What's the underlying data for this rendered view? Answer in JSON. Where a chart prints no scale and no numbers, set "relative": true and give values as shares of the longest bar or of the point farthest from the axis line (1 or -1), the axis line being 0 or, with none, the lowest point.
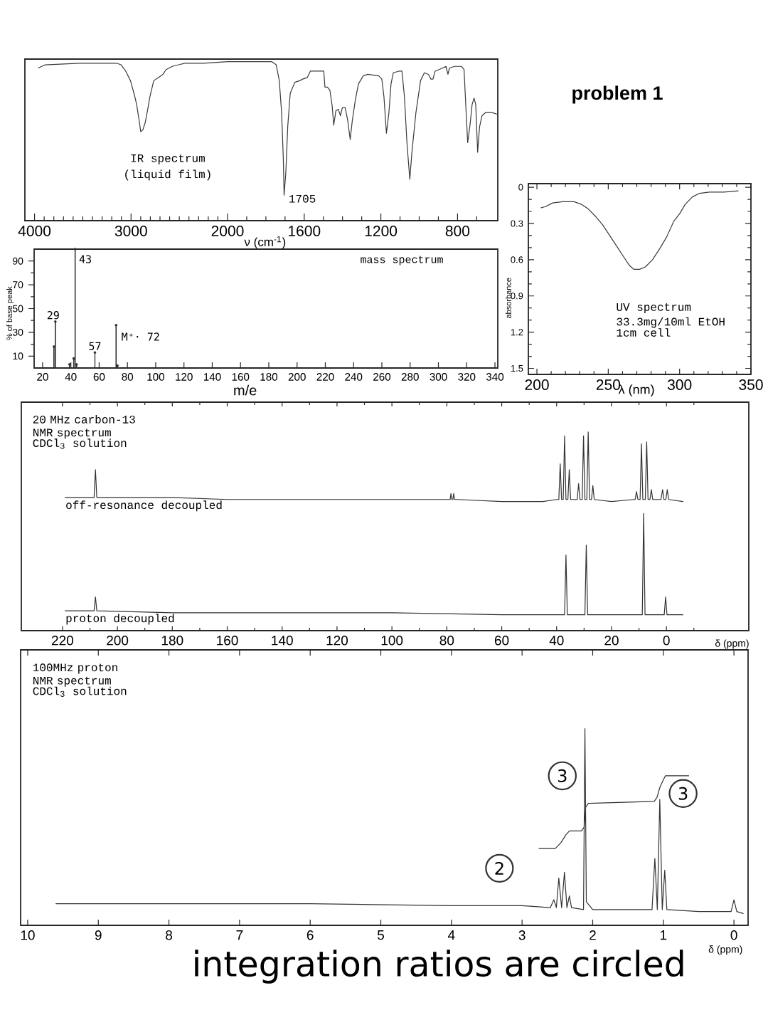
{
  "chart_data": [
    {
      "type": "line",
      "title": "IR spectrum",
      "subtitle": "(liquid film)",
      "relative": true,
      "color": "#3a3a3a",
      "xlim": [
        4100,
        2000
      ],
      "xticks": [
        4000,
        {
          "value": 3900,
          "label": null
        },
        {
          "value": 3800,
          "label": null
        },
        {
          "value": 3700,
          "label": null
        },
        {
          "value": 3600,
          "label": null
        },
        {
          "value": 3500,
          "label": null
        },
        {
          "value": 3400,
          "label": null
        },
        {
          "value": 3300,
          "label": null
        },
        {
          "value": 3200,
          "label": null
        },
        {
          "value": 3100,
          "label": null
        },
        3000,
        {
          "value": 2900,
          "label": null
        },
        {
          "value": 2800,
          "label": null
        },
        {
          "value": 2700,
          "label": null
        },
        {
          "value": 2600,
          "label": null
        },
        {
          "value": 2500,
          "label": null
        },
        {
          "value": 2400,
          "label": null
        },
        {
          "value": 2300,
          "label": null
        },
        {
          "value": 2200,
          "label": null
        },
        {
          "value": 2100,
          "label": null
        },
        2000
      ],
      "x": [
        3960,
        3891,
        3537,
        3151,
        3103,
        3055,
        3006,
        2965,
        2942,
        2916,
        2900,
        2878,
        2852,
        2830,
        2804,
        2765,
        2717,
        2669,
        2637,
        2572,
        2444,
        2251,
        2000
      ],
      "values": [
        0.96,
        0.98,
        0.99,
        0.99,
        0.98,
        0.94,
        0.88,
        0.79,
        0.73,
        0.63,
        0.56,
        0.57,
        0.62,
        0.69,
        0.78,
        0.88,
        0.9,
        0.92,
        0.95,
        0.97,
        0.99,
        0.99,
        1.0
      ]
    },
    {
      "type": "line",
      "xlabel": "ν (cm$^{-1}$)",
      "relative": true,
      "color": "#3a3a3a",
      "xlim": [
        2000,
        590
      ],
      "xticks": [
        {
          "value": 1900,
          "label": null
        },
        {
          "value": 1800,
          "label": null
        },
        {
          "value": 1700,
          "label": null
        },
        1600,
        {
          "value": 1500,
          "label": null
        },
        {
          "value": 1400,
          "label": null
        },
        {
          "value": 1300,
          "label": null
        },
        1200,
        {
          "value": 1100,
          "label": null
        },
        {
          "value": 1000,
          "label": null
        },
        {
          "value": 900,
          "label": null
        },
        800,
        {
          "value": 700,
          "label": null
        }
      ],
      "x": [
        2000,
        1964,
        1770,
        1746,
        1730,
        1718,
        1709,
        1705,
        1696,
        1686,
        1673,
        1649,
        1624,
        1608,
        1584,
        1568,
        1543,
        1498,
        1492,
        1479,
        1466,
        1454,
        1446,
        1435,
        1422,
        1411,
        1401,
        1386,
        1373,
        1360,
        1349,
        1333,
        1317,
        1292,
        1268,
        1211,
        1195,
        1184,
        1171,
        1158,
        1147,
        1135,
        1106,
        1090,
        1077,
        1064,
        1049,
        1038,
        1017,
        993,
        973,
        952,
        939,
        928,
        917,
        896,
        860,
        850,
        842,
        815,
        779,
        766,
        755,
        747,
        734,
        724,
        714,
        705,
        695,
        685,
        672,
        653,
        620,
        596
      ],
      "values": [
        1.0,
        1.0,
        1.0,
        0.98,
        0.88,
        0.68,
        0.39,
        0.16,
        0.3,
        0.59,
        0.8,
        0.87,
        0.88,
        0.89,
        0.9,
        0.94,
        0.94,
        0.94,
        0.84,
        0.84,
        0.82,
        0.72,
        0.6,
        0.69,
        0.7,
        0.66,
        0.71,
        0.71,
        0.63,
        0.51,
        0.63,
        0.76,
        0.86,
        0.91,
        0.92,
        0.91,
        0.89,
        0.78,
        0.55,
        0.68,
        0.86,
        0.93,
        0.94,
        0.94,
        0.78,
        0.49,
        0.26,
        0.43,
        0.68,
        0.88,
        0.93,
        0.92,
        0.89,
        0.89,
        0.94,
        0.95,
        0.97,
        0.92,
        0.96,
        0.97,
        0.97,
        0.95,
        0.68,
        0.49,
        0.61,
        0.73,
        0.77,
        0.73,
        0.43,
        0.59,
        0.66,
        0.68,
        0.68,
        0.67
      ],
      "annotations": [
        {
          "text": "1705",
          "x": 1705,
          "y": 0.16
        }
      ]
    },
    {
      "type": "other",
      "title": "problem 1"
    },
    {
      "type": "lollipop",
      "marker": "circle",
      "title": "mass spectrum",
      "xlabel": "m/e",
      "ylabel": "% of base peak",
      "color": "#2e2e2e",
      "xlim": [
        14,
        342
      ],
      "ylim": [
        0,
        100
      ],
      "xticks": [
        20,
        40,
        60,
        80,
        100,
        120,
        140,
        160,
        180,
        200,
        220,
        240,
        260,
        280,
        300,
        320,
        340
      ],
      "yticks": [
        10,
        {
          "value": 20,
          "label": null
        },
        30,
        {
          "value": 40,
          "label": null
        },
        50,
        {
          "value": 60,
          "label": null
        },
        70,
        {
          "value": 80,
          "label": null
        },
        90
      ],
      "x": [
        28,
        29,
        39,
        42,
        43,
        44,
        57,
        72,
        73
      ],
      "values": [
        18,
        39,
        3,
        8,
        100,
        3,
        13,
        36,
        2
      ],
      "annotations": [
        {
          "text": "29",
          "x": 29,
          "y": 39
        },
        {
          "text": "43",
          "x": 43,
          "y": 100
        },
        {
          "text": "57",
          "x": 57,
          "y": 13
        },
        {
          "text": "M⁺· 72",
          "x": 72,
          "y": 36
        }
      ]
    },
    {
      "type": "line",
      "title": "UV spectrum",
      "subtitle": "33.3mg/10ml EtOH",
      "xlabel": "λ (nm)",
      "ylabel": "absorbance",
      "color": "#3a3a3a",
      "xlim": [
        194,
        350
      ],
      "ylim": [
        1.55,
        -0.03
      ],
      "xticks": [
        200,
        {
          "value": 210,
          "label": null
        },
        {
          "value": 220,
          "label": null
        },
        {
          "value": 230,
          "label": null
        },
        {
          "value": 240,
          "label": null
        },
        250,
        {
          "value": 260,
          "label": null
        },
        {
          "value": 270,
          "label": null
        },
        {
          "value": 280,
          "label": null
        },
        {
          "value": 290,
          "label": null
        },
        300,
        {
          "value": 310,
          "label": null
        },
        {
          "value": 320,
          "label": null
        },
        {
          "value": 330,
          "label": null
        },
        {
          "value": 340,
          "label": null
        },
        350
      ],
      "yticks": [
        0,
        {
          "value": 0.1,
          "label": null
        },
        {
          "value": 0.2,
          "label": null
        },
        0.3,
        {
          "value": 0.4,
          "label": null
        },
        {
          "value": 0.5,
          "label": null
        },
        0.6,
        {
          "value": 0.7,
          "label": null
        },
        {
          "value": 0.8,
          "label": null
        },
        0.9,
        {
          "value": 1.0,
          "label": null
        },
        {
          "value": 1.1,
          "label": null
        },
        1.2,
        {
          "value": 1.3,
          "label": null
        },
        {
          "value": 1.4,
          "label": null
        },
        1.5
      ],
      "x": [
        203,
        206,
        211,
        218,
        226,
        231,
        236,
        241,
        246,
        251,
        256,
        261,
        265,
        268,
        272,
        276,
        281,
        286,
        291,
        296,
        300,
        304,
        309,
        314,
        321,
        331,
        341
      ],
      "values": [
        0.17,
        0.16,
        0.13,
        0.12,
        0.12,
        0.14,
        0.18,
        0.24,
        0.31,
        0.4,
        0.49,
        0.58,
        0.65,
        0.68,
        0.68,
        0.66,
        0.6,
        0.51,
        0.41,
        0.28,
        0.22,
        0.14,
        0.08,
        0.05,
        0.04,
        0.04,
        0.03
      ],
      "annotations": [
        "1cm cell"
      ]
    },
    {
      "type": "line",
      "title": "20 MHz carbon-13 NMR spectrum",
      "subtitle": "CDCl$_{3}$ solution",
      "xlabel": "δ (ppm)",
      "relative": true,
      "xlim": [
        235,
        -30
      ],
      "xticks": [
        220,
        {
          "value": 210,
          "label": null
        },
        200,
        {
          "value": 190,
          "label": null
        },
        180,
        {
          "value": 170,
          "label": null
        },
        160,
        {
          "value": 150,
          "label": null
        },
        140,
        {
          "value": 130,
          "label": null
        },
        120,
        {
          "value": 110,
          "label": null
        },
        100,
        {
          "value": 90,
          "label": null
        },
        80,
        {
          "value": 70,
          "label": null
        },
        60,
        {
          "value": 50,
          "label": null
        },
        40,
        {
          "value": 30,
          "label": null
        },
        20,
        {
          "value": 10,
          "label": null
        },
        0,
        {
          "value": -10,
          "label": null
        }
      ],
      "series": [
        {
          "name": "off-resonance decoupled",
          "color": "#333333",
          "x": [
            219,
            212,
            208.5,
            208,
            207.5,
            200,
            180,
            160,
            140,
            120,
            100,
            80,
            78.8,
            78.5,
            78.2,
            77.8,
            77.5,
            77.2,
            76,
            60,
            45,
            40,
            39.2,
            38.7,
            38.2,
            37.6,
            37.1,
            36.6,
            35.9,
            35.4,
            34.9,
            32.5,
            32,
            31.5,
            30.7,
            30.2,
            29.7,
            29,
            28.5,
            28,
            27.3,
            26.8,
            26.3,
            20,
            12,
            11.4,
            10.9,
            10.4,
            9.6,
            9.1,
            8.6,
            7.7,
            7.2,
            6.7,
            6,
            5.5,
            5,
            2,
            1.4,
            0.9,
            0.2,
            -0.3,
            -0.8,
            -6
          ],
          "values": [
            0.67,
            0.67,
            0.67,
            0.81,
            0.67,
            0.67,
            0.67,
            0.66,
            0.66,
            0.66,
            0.66,
            0.66,
            0.66,
            0.69,
            0.66,
            0.66,
            0.69,
            0.66,
            0.66,
            0.65,
            0.65,
            0.66,
            0.66,
            0.84,
            0.66,
            0.66,
            0.98,
            0.66,
            0.66,
            0.81,
            0.66,
            0.66,
            0.74,
            0.66,
            0.66,
            0.98,
            0.66,
            0.66,
            1.0,
            0.66,
            0.66,
            0.73,
            0.66,
            0.65,
            0.66,
            0.66,
            0.7,
            0.66,
            0.66,
            0.94,
            0.66,
            0.66,
            0.95,
            0.66,
            0.66,
            0.71,
            0.66,
            0.66,
            0.71,
            0.66,
            0.66,
            0.71,
            0.66,
            0.65
          ]
        },
        {
          "name": "proton decoupled",
          "color": "#333333",
          "x": [
            219,
            208.5,
            208,
            207.5,
            180,
            140,
            100,
            60,
            37.1,
            36.6,
            36.1,
            29.7,
            29.2,
            28.7,
            8.8,
            8.3,
            7.8,
            0.8,
            0.3,
            -0.2,
            -6
          ],
          "values": [
            0.1,
            0.1,
            0.17,
            0.1,
            0.09,
            0.09,
            0.09,
            0.08,
            0.08,
            0.38,
            0.08,
            0.08,
            0.43,
            0.08,
            0.08,
            0.59,
            0.08,
            0.08,
            0.17,
            0.08,
            0.08
          ]
        }
      ]
    },
    {
      "type": "line",
      "title": "100MHz proton NMR spectrum",
      "subtitle": "CDCl$_{3}$ solution",
      "xlabel": "δ (ppm)",
      "relative": true,
      "xlim": [
        10.1,
        -0.2
      ],
      "xticks": [
        10,
        9,
        8,
        7,
        6,
        5,
        4,
        3,
        2,
        1,
        0
      ],
      "series": [
        {
          "color": "#333333",
          "x": [
            9.6,
            8,
            6,
            4,
            3,
            2.6,
            2.55,
            2.515,
            2.48,
            2.44,
            2.4,
            2.365,
            2.33,
            2.3,
            2.13,
            2.11,
            2.09,
            2,
            1.5,
            1.16,
            1.12,
            1.085,
            1.05,
            1.015,
            0.98,
            0.95,
            0.5,
            0.04,
            0,
            -0.04,
            -0.13
          ],
          "values": [
            0.11,
            0.11,
            0.11,
            0.1,
            0.1,
            0.09,
            0.13,
            0.09,
            0.24,
            0.09,
            0.27,
            0.09,
            0.15,
            0.09,
            0.08,
            1.0,
            0.12,
            0.08,
            0.08,
            0.08,
            0.34,
            0.08,
            0.64,
            0.08,
            0.28,
            0.08,
            0.07,
            0.07,
            0.13,
            0.07,
            0.06
          ]
        },
        {
          "color": "#333333",
          "x": [
            2.76,
            2.53,
            2.45,
            2.38,
            2.33,
            2.16,
            2.12,
            2.1,
            2.06,
            1.13,
            1.09,
            1.05,
            1,
            0.97,
            0.64
          ],
          "values": [
            0.39,
            0.39,
            0.42,
            0.46,
            0.48,
            0.48,
            0.5,
            0.6,
            0.62,
            0.63,
            0.65,
            0.7,
            0.74,
            0.76,
            0.76
          ]
        }
      ],
      "annotations": [
        {
          "text": "3",
          "x": 2.43,
          "y": 0.76
        },
        {
          "text": "3",
          "x": 0.72,
          "y": 0.67
        },
        {
          "text": "2",
          "x": 3.32,
          "y": 0.29
        },
        "integration ratios are circled"
      ]
    }
  ]
}
